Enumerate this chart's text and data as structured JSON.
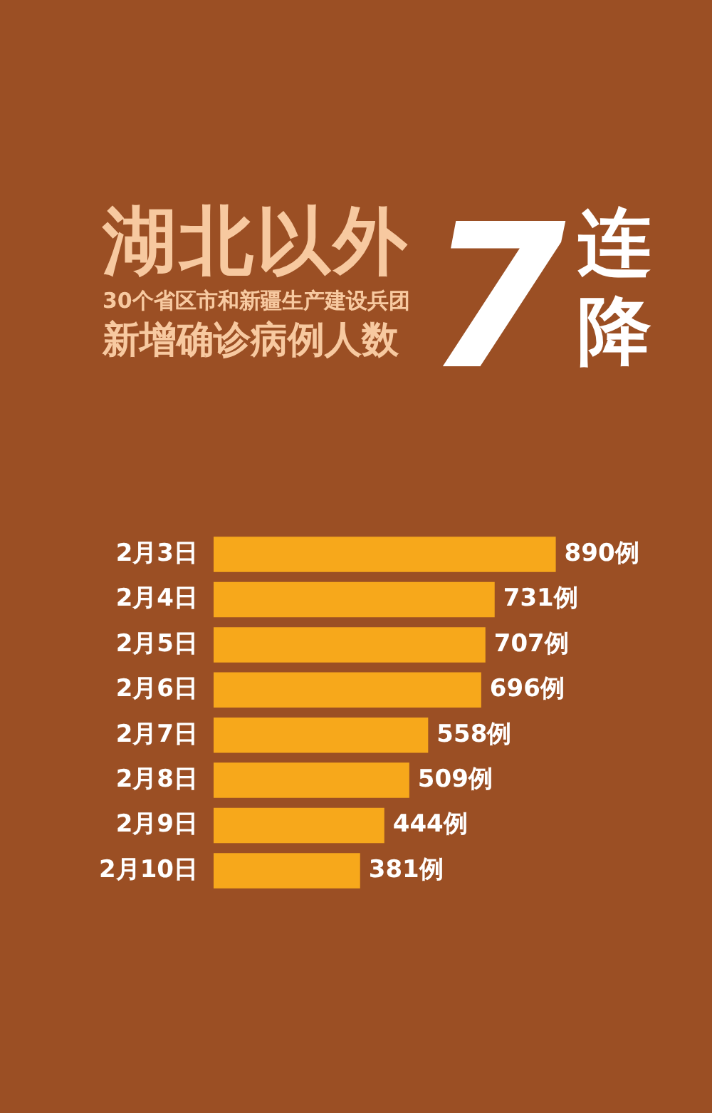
{
  "chart_data": {
    "type": "bar",
    "orientation": "horizontal",
    "title": "湖北以外",
    "subtitle": "30个省区市和新疆生产建设兵团",
    "annotations": [
      "新增确诊病例人数",
      "7连降"
    ],
    "categories": [
      "2月3日",
      "2月4日",
      "2月5日",
      "2月6日",
      "2月7日",
      "2月8日",
      "2月9日",
      "2月10日"
    ],
    "values": [
      890,
      731,
      707,
      696,
      558,
      509,
      444,
      381
    ],
    "value_labels": [
      "890例",
      "731例",
      "707例",
      "696例",
      "558例",
      "509例",
      "444例",
      "381例"
    ],
    "color": "#f7a81b",
    "legend": false
  }
}
